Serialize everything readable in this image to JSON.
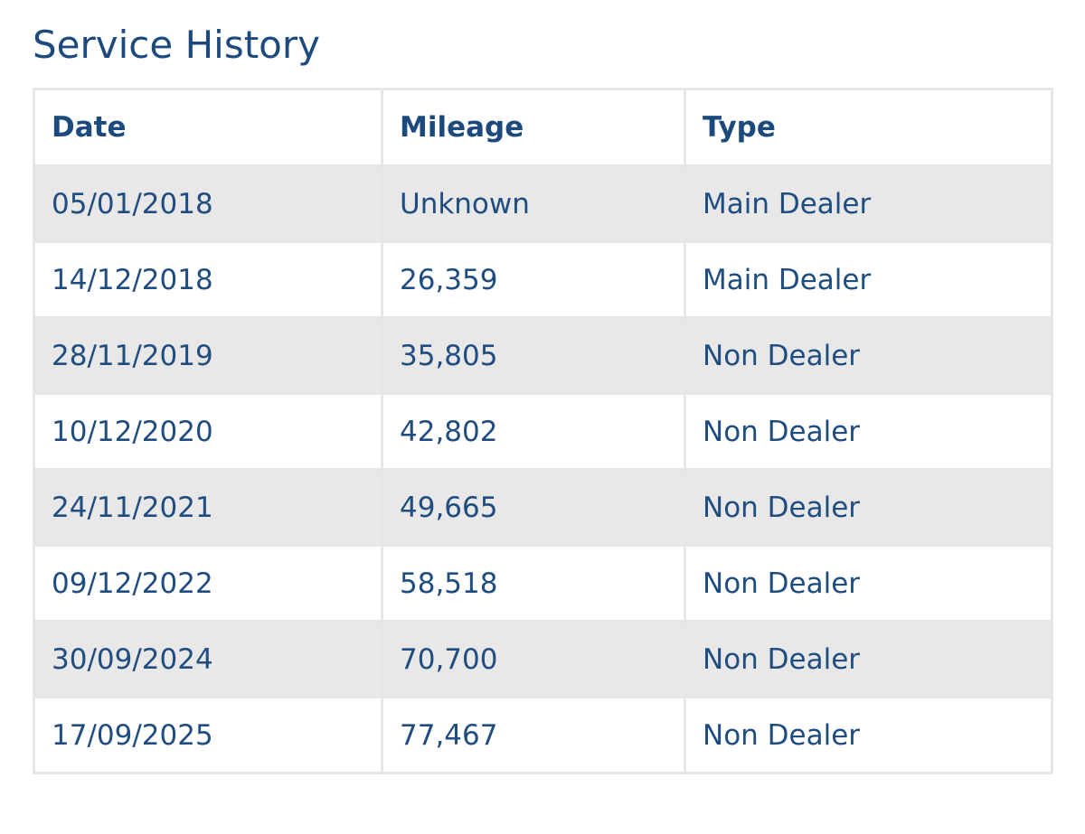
{
  "header": {
    "title": "Service History"
  },
  "table": {
    "columns": [
      "Date",
      "Mileage",
      "Type"
    ],
    "rows": [
      [
        "05/01/2018",
        "Unknown",
        "Main Dealer"
      ],
      [
        "14/12/2018",
        "26,359",
        "Main Dealer"
      ],
      [
        "28/11/2019",
        "35,805",
        "Non Dealer"
      ],
      [
        "10/12/2020",
        "42,802",
        "Non Dealer"
      ],
      [
        "24/11/2021",
        "49,665",
        "Non Dealer"
      ],
      [
        "09/12/2022",
        "58,518",
        "Non Dealer"
      ],
      [
        "30/09/2024",
        "70,700",
        "Non Dealer"
      ],
      [
        "17/09/2025",
        "77,467",
        "Non Dealer"
      ]
    ]
  }
}
